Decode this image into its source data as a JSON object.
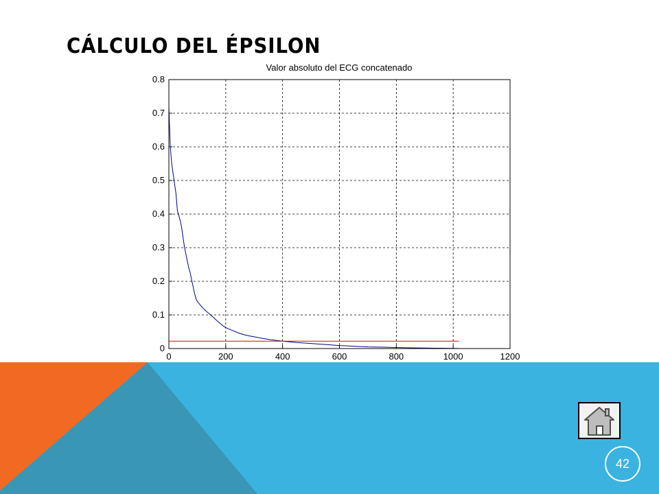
{
  "slide": {
    "title": "CÁLCULO DEL ÉPSILON",
    "page_number": "42",
    "colors": {
      "orange": "#f26a21",
      "blue": "#3bb3e0",
      "teal": "#3a96b5"
    }
  },
  "home_button": {
    "icon": "home-icon"
  },
  "chart_data": {
    "type": "line",
    "title": "Valor absoluto del ECG concatenado",
    "xlabel": "",
    "ylabel": "",
    "xlim": [
      0,
      1200
    ],
    "ylim": [
      0,
      0.8
    ],
    "xticks": [
      0,
      200,
      400,
      600,
      800,
      1000,
      1200
    ],
    "yticks": [
      0,
      0.1,
      0.2,
      0.3,
      0.4,
      0.5,
      0.6,
      0.7,
      0.8
    ],
    "grid": true,
    "series": [
      {
        "color": "#00008b",
        "x": [
          0,
          2,
          5,
          10,
          15,
          20,
          25,
          30,
          35,
          40,
          45,
          50,
          55,
          60,
          65,
          70,
          75,
          80,
          85,
          90,
          95,
          100,
          110,
          120,
          130,
          140,
          150,
          160,
          170,
          180,
          190,
          200,
          220,
          240,
          260,
          280,
          300,
          330,
          360,
          400,
          450,
          500,
          550,
          600,
          650,
          700,
          750,
          800,
          850,
          900,
          950,
          1000,
          1020
        ],
        "y": [
          0.72,
          0.67,
          0.6,
          0.55,
          0.52,
          0.49,
          0.46,
          0.41,
          0.395,
          0.38,
          0.36,
          0.33,
          0.3,
          0.28,
          0.26,
          0.24,
          0.225,
          0.205,
          0.185,
          0.165,
          0.15,
          0.14,
          0.13,
          0.12,
          0.112,
          0.105,
          0.098,
          0.09,
          0.082,
          0.075,
          0.068,
          0.062,
          0.055,
          0.048,
          0.042,
          0.038,
          0.035,
          0.03,
          0.026,
          0.022,
          0.018,
          0.015,
          0.012,
          0.009,
          0.007,
          0.005,
          0.004,
          0.003,
          0.002,
          0.0015,
          0.001,
          0.0005,
          0.0003
        ]
      },
      {
        "color": "#e00000",
        "x": [
          0,
          1020
        ],
        "y": [
          0.022,
          0.022
        ]
      }
    ]
  }
}
